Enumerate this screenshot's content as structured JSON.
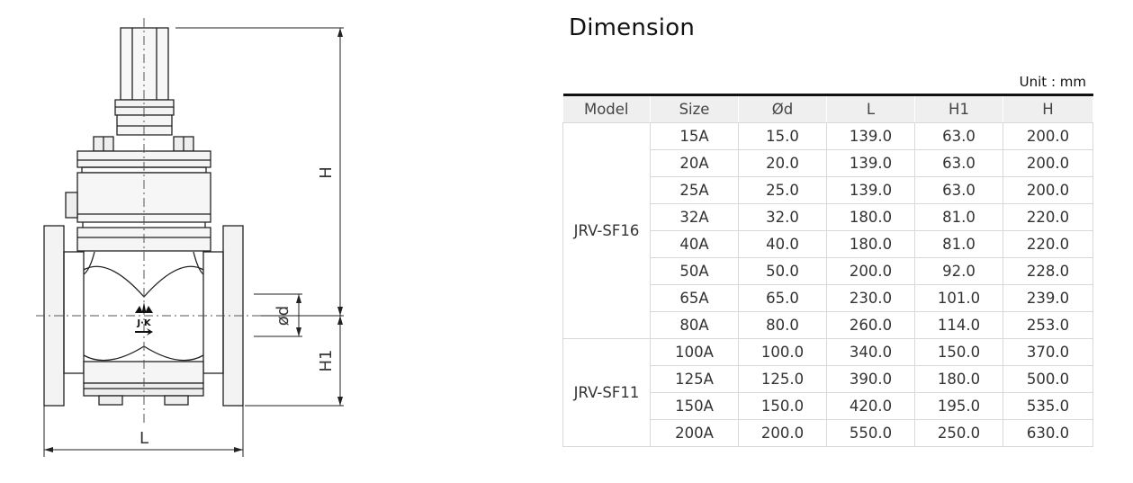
{
  "drawing": {
    "labels": {
      "H": "H",
      "H1": "H1",
      "L": "L",
      "d": "ød",
      "logo": "J·K"
    }
  },
  "title": "Dimension",
  "unit": "Unit : mm",
  "table": {
    "headers": [
      "Model",
      "Size",
      "Ød",
      "L",
      "H1",
      "H"
    ],
    "groups": [
      {
        "model": "JRV-SF16",
        "rows": [
          [
            "15A",
            "15.0",
            "139.0",
            "63.0",
            "200.0"
          ],
          [
            "20A",
            "20.0",
            "139.0",
            "63.0",
            "200.0"
          ],
          [
            "25A",
            "25.0",
            "139.0",
            "63.0",
            "200.0"
          ],
          [
            "32A",
            "32.0",
            "180.0",
            "81.0",
            "220.0"
          ],
          [
            "40A",
            "40.0",
            "180.0",
            "81.0",
            "220.0"
          ],
          [
            "50A",
            "50.0",
            "200.0",
            "92.0",
            "228.0"
          ],
          [
            "65A",
            "65.0",
            "230.0",
            "101.0",
            "239.0"
          ],
          [
            "80A",
            "80.0",
            "260.0",
            "114.0",
            "253.0"
          ]
        ]
      },
      {
        "model": "JRV-SF11",
        "rows": [
          [
            "100A",
            "100.0",
            "340.0",
            "150.0",
            "370.0"
          ],
          [
            "125A",
            "125.0",
            "390.0",
            "180.0",
            "500.0"
          ],
          [
            "150A",
            "150.0",
            "420.0",
            "195.0",
            "535.0"
          ],
          [
            "200A",
            "200.0",
            "550.0",
            "250.0",
            "630.0"
          ]
        ]
      }
    ]
  }
}
